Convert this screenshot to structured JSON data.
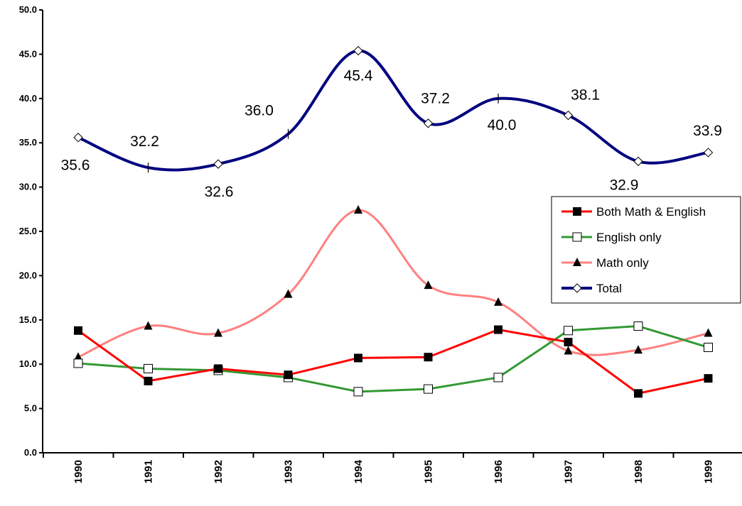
{
  "chart_data": {
    "type": "line",
    "title": "",
    "xlabel": "",
    "ylabel": "",
    "ylim": [
      0,
      50
    ],
    "yticks": [
      "0.0",
      "5.0",
      "10.0",
      "15.0",
      "20.0",
      "25.0",
      "30.0",
      "35.0",
      "40.0",
      "45.0",
      "50.0"
    ],
    "categories": [
      "1990",
      "1991",
      "1992",
      "1993",
      "1994",
      "1995",
      "1996",
      "1997",
      "1998",
      "1999"
    ],
    "grid": false,
    "legend_position": "right",
    "series": [
      {
        "name": "Both Math & English",
        "color": "#ff0000",
        "marker": "square-filled",
        "values": [
          13.8,
          8.1,
          9.5,
          8.8,
          10.7,
          10.8,
          13.9,
          12.5,
          6.7,
          8.4
        ]
      },
      {
        "name": "English only",
        "color": "#339933",
        "marker": "square-open",
        "values": [
          10.1,
          9.5,
          9.3,
          8.5,
          6.9,
          7.2,
          8.5,
          13.8,
          14.3,
          11.9
        ]
      },
      {
        "name": "Math only",
        "color": "#ff8080",
        "marker": "triangle",
        "values": [
          10.8,
          14.3,
          13.5,
          17.9,
          27.4,
          18.9,
          17.0,
          11.5,
          11.6,
          13.5
        ]
      },
      {
        "name": "Total",
        "color": "#000080",
        "marker": "diamond-open",
        "values": [
          35.6,
          32.2,
          32.6,
          36.0,
          45.4,
          37.2,
          40.0,
          38.1,
          32.9,
          33.9
        ],
        "data_labels": [
          "35.6",
          "32.2",
          "32.6",
          "36.0",
          "45.4",
          "37.2",
          "40.0",
          "38.1",
          "32.9",
          "33.9"
        ]
      }
    ]
  }
}
